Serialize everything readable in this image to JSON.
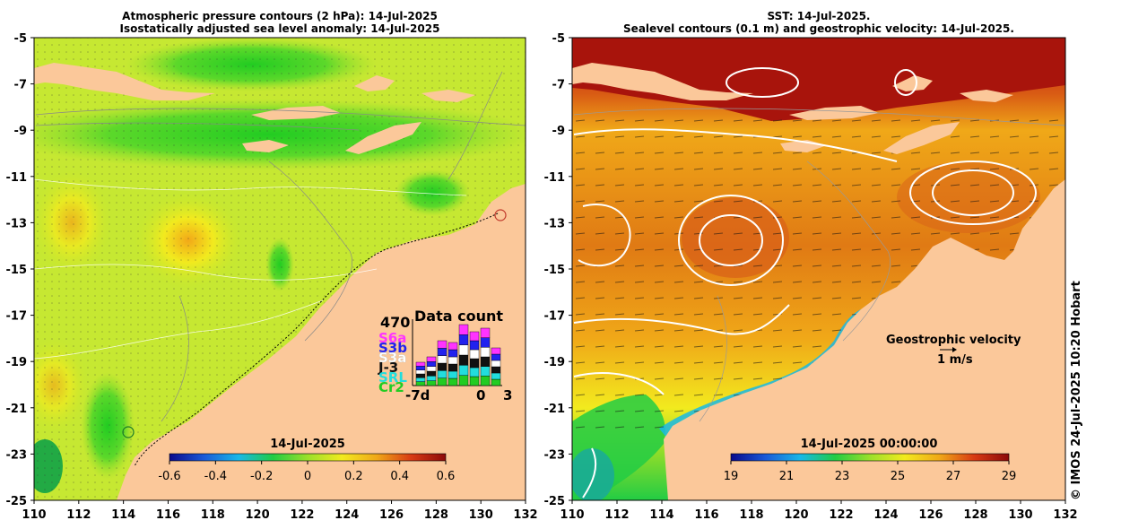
{
  "left_panel": {
    "title_line1": "Atmospheric pressure contours (2 hPa): 14-Jul-2025",
    "title_line2": "Isostatically adjusted sea level anomaly: 14-Jul-2025",
    "colorbar": {
      "date": "14-Jul-2025",
      "ticks": [
        "-0.6",
        "-0.4",
        "-0.2",
        "0",
        "0.2",
        "0.4",
        "0.6"
      ],
      "range": [
        -0.6,
        0.6
      ]
    },
    "data_count": {
      "title": "Data count",
      "max_label": "470",
      "missions": [
        {
          "name": "S6a",
          "color": "#ff33ff"
        },
        {
          "name": "S3b",
          "color": "#2222ee"
        },
        {
          "name": "S3a",
          "color": "#ffffff"
        },
        {
          "name": "J-3",
          "color": "#111111"
        },
        {
          "name": "SRL",
          "color": "#22dddd"
        },
        {
          "name": "Cr2",
          "color": "#22cc22"
        }
      ],
      "x_labels": [
        "-7d",
        "0",
        "3"
      ]
    }
  },
  "right_panel": {
    "title_line1": "SST: 14-Jul-2025.",
    "title_line2": "Sealevel contours (0.1 m) and geostrophic velocity: 14-Jul-2025.",
    "colorbar": {
      "date": "14-Jul-2025 00:00:00",
      "ticks": [
        "19",
        "21",
        "23",
        "25",
        "27",
        "29"
      ],
      "range": [
        19,
        29
      ]
    },
    "velocity_label": "Geostrophic velocity",
    "velocity_scale": "1 m/s"
  },
  "axes": {
    "lon_ticks": [
      "110",
      "112",
      "114",
      "116",
      "118",
      "120",
      "122",
      "124",
      "126",
      "128",
      "130",
      "132"
    ],
    "lat_ticks": [
      "-5",
      "-7",
      "-9",
      "-11",
      "-13",
      "-15",
      "-17",
      "-19",
      "-21",
      "-23",
      "-25"
    ],
    "lon_range": [
      110,
      132
    ],
    "lat_range": [
      -25,
      -5
    ]
  },
  "credit": "© IMOS 24-Jul-2025 10:20 Hobart",
  "colors": {
    "land": "#fbc89a",
    "sla_colormap": [
      "#0a0a8c",
      "#1a5ad8",
      "#18b8e8",
      "#22cc44",
      "#9be02a",
      "#f2ea1e",
      "#f0a818",
      "#d83a14",
      "#8c0a0a"
    ],
    "sst_colormap": [
      "#0a0a8c",
      "#1a5ad8",
      "#18b8e8",
      "#22cc44",
      "#9be02a",
      "#f2ea1e",
      "#f0a818",
      "#d83a14",
      "#8c0a0a"
    ]
  }
}
